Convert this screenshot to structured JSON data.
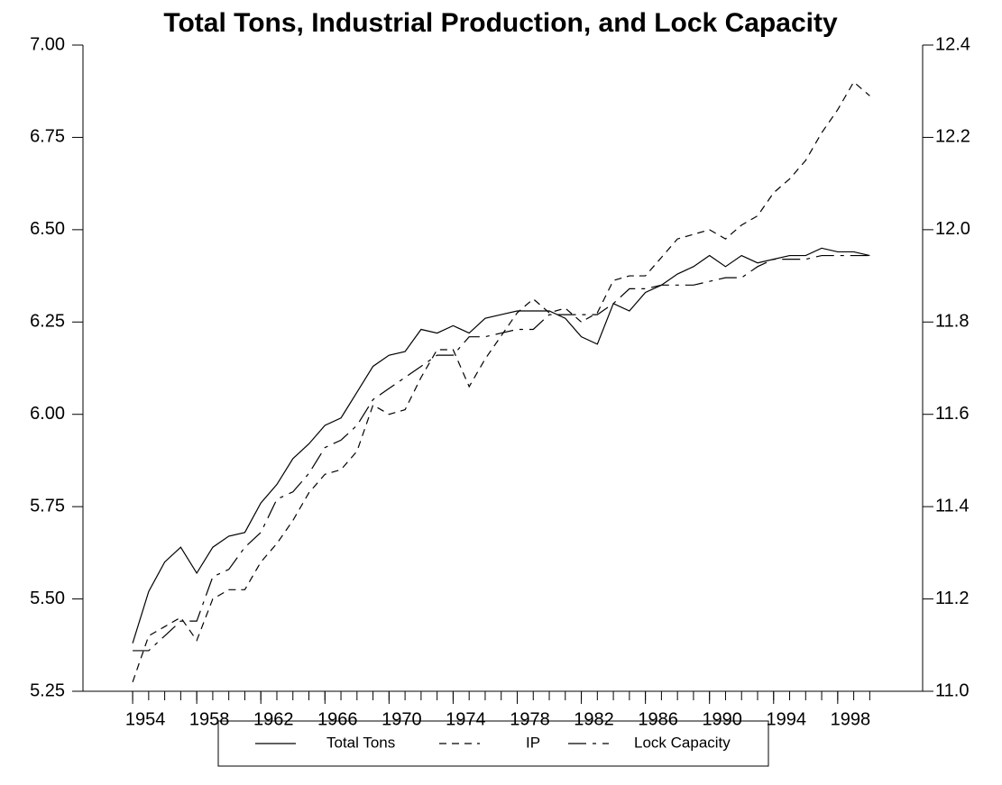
{
  "chart_data": {
    "type": "line",
    "title": "Total Tons, Industrial Production, and Lock Capacity",
    "x": [
      1954,
      1955,
      1956,
      1957,
      1958,
      1959,
      1960,
      1961,
      1962,
      1963,
      1964,
      1965,
      1966,
      1967,
      1968,
      1969,
      1970,
      1971,
      1972,
      1973,
      1974,
      1975,
      1976,
      1977,
      1978,
      1979,
      1980,
      1981,
      1982,
      1983,
      1984,
      1985,
      1986,
      1987,
      1988,
      1989,
      1990,
      1991,
      1992,
      1993,
      1994,
      1995,
      1996,
      1997,
      1998,
      1999,
      2000
    ],
    "series": [
      {
        "name": "Total Tons",
        "color": "#000000",
        "linestyle": "solid",
        "values": [
          5.38,
          5.52,
          5.6,
          5.64,
          5.57,
          5.64,
          5.67,
          5.68,
          5.76,
          5.81,
          5.88,
          5.92,
          5.97,
          5.99,
          6.06,
          6.13,
          6.16,
          6.17,
          6.23,
          6.22,
          6.24,
          6.22,
          6.26,
          6.27,
          6.28,
          6.28,
          6.28,
          6.26,
          6.21,
          6.19,
          6.3,
          6.28,
          6.33,
          6.35,
          6.38,
          6.4,
          6.43,
          6.4,
          6.43,
          6.41,
          6.42,
          6.43,
          6.43,
          6.45,
          6.44,
          6.44,
          6.43
        ]
      },
      {
        "name": "IP",
        "color": "#000000",
        "linestyle": "dashed",
        "axis": "y2",
        "values": [
          11.02,
          11.12,
          11.14,
          11.16,
          11.11,
          11.2,
          11.22,
          11.22,
          11.28,
          11.32,
          11.37,
          11.43,
          11.47,
          11.48,
          11.52,
          11.62,
          11.6,
          11.61,
          11.68,
          11.74,
          11.74,
          11.66,
          11.72,
          11.77,
          11.82,
          11.85,
          11.82,
          11.83,
          11.8,
          11.82,
          11.89,
          11.9,
          11.9,
          11.94,
          11.98,
          11.99,
          12.0,
          11.98,
          12.01,
          12.03,
          12.08,
          12.11,
          12.15,
          12.21,
          12.26,
          12.32,
          12.29
        ]
      },
      {
        "name": "Lock Capacity",
        "color": "#000000",
        "linestyle": "dashdot",
        "values": [
          5.36,
          5.36,
          5.4,
          5.44,
          5.44,
          5.56,
          5.58,
          5.64,
          5.68,
          5.77,
          5.79,
          5.84,
          5.91,
          5.93,
          5.97,
          6.04,
          6.07,
          6.1,
          6.13,
          6.16,
          6.16,
          6.21,
          6.21,
          6.22,
          6.23,
          6.23,
          6.27,
          6.27,
          6.27,
          6.27,
          6.3,
          6.34,
          6.34,
          6.35,
          6.35,
          6.35,
          6.36,
          6.37,
          6.37,
          6.4,
          6.42,
          6.42,
          6.42,
          6.43,
          6.43,
          6.43,
          6.43
        ]
      }
    ],
    "xlim": [
      1950.9,
      2003.3
    ],
    "xticks": [
      1954,
      1958,
      1962,
      1966,
      1970,
      1974,
      1978,
      1982,
      1986,
      1990,
      1994,
      1998
    ],
    "ylim": [
      5.25,
      7.0
    ],
    "yticks": [
      5.25,
      {
        "value": 5.5,
        "label": "5.50"
      },
      5.75,
      {
        "value": 6.0,
        "label": "6.00"
      },
      6.25,
      {
        "value": 6.5,
        "label": "6.50"
      },
      6.75,
      {
        "value": 7.0,
        "label": "7.00"
      }
    ],
    "y2lim": [
      11.0,
      12.4
    ],
    "y2ticks": [
      {
        "value": 11.0,
        "label": "11.0"
      },
      11.2,
      11.4,
      11.6,
      11.8,
      {
        "value": 12.0,
        "label": "12.0"
      },
      12.2,
      12.4
    ],
    "grid": false,
    "legend": "bottom"
  }
}
